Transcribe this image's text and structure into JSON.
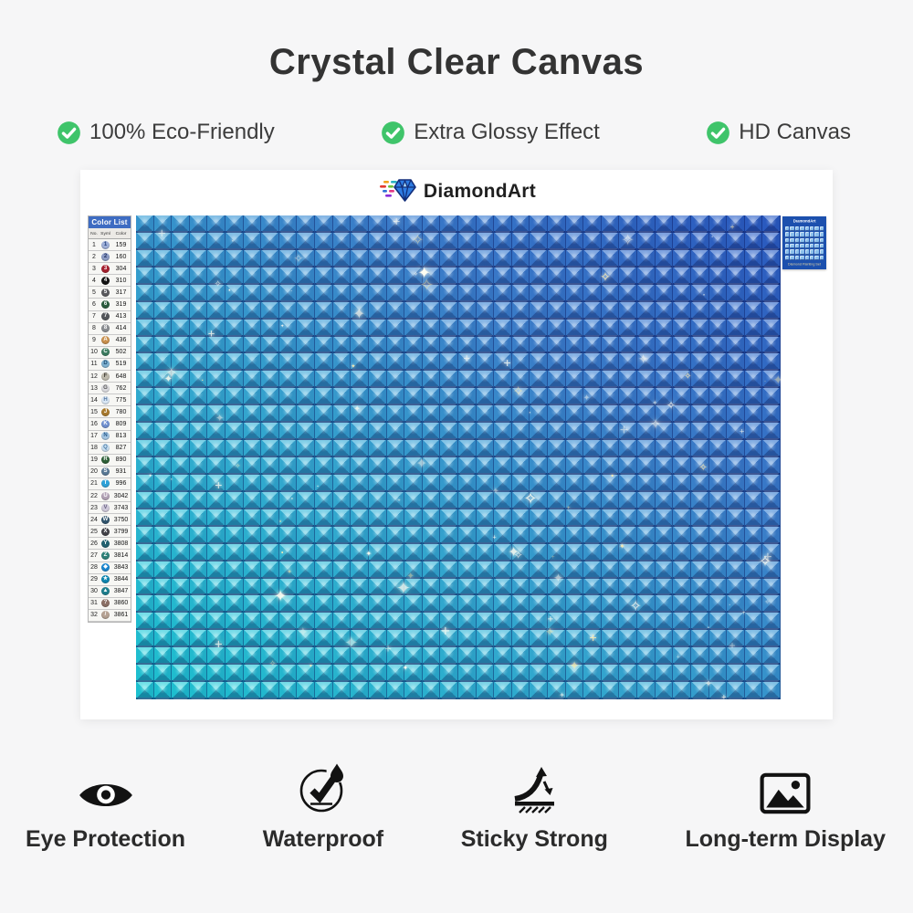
{
  "page": {
    "title": "Crystal Clear Canvas",
    "background": "#f6f6f7",
    "accent_green": "#3fc46a"
  },
  "features": [
    {
      "label": "100% Eco-Friendly"
    },
    {
      "label": "Extra Glossy Effect"
    },
    {
      "label": "HD Canvas"
    }
  ],
  "brand": {
    "name": "DiamondArt"
  },
  "color_list": {
    "title": "Color List",
    "columns": [
      "No.",
      "Symbol",
      "Color"
    ],
    "rows": [
      [
        1,
        "1",
        "159",
        "#9fb0d8",
        "#23407c"
      ],
      [
        2,
        "2",
        "160",
        "#8d9cc4",
        "#1e2e5e"
      ],
      [
        3,
        "3",
        "304",
        "#a6202e",
        "#ffffff"
      ],
      [
        4,
        "4",
        "310",
        "#141414",
        "#ffffff"
      ],
      [
        5,
        "5",
        "317",
        "#5a5a5e",
        "#ffffff"
      ],
      [
        6,
        "6",
        "319",
        "#2b5c3e",
        "#ffffff"
      ],
      [
        7,
        "7",
        "413",
        "#54575b",
        "#ffffff"
      ],
      [
        8,
        "8",
        "414",
        "#8b8e92",
        "#ffffff"
      ],
      [
        9,
        "A",
        "436",
        "#c9914e",
        "#ffffff"
      ],
      [
        10,
        "C",
        "502",
        "#3c7c60",
        "#ffffff"
      ],
      [
        11,
        "D",
        "519",
        "#7fb2d2",
        "#1c4a6e"
      ],
      [
        12,
        "F",
        "648",
        "#bdb9ac",
        "#3f3c34"
      ],
      [
        13,
        "G",
        "762",
        "#dadade",
        "#555555"
      ],
      [
        14,
        "H",
        "775",
        "#d9e7f5",
        "#5577a0"
      ],
      [
        15,
        "J",
        "780",
        "#a87a2e",
        "#ffffff"
      ],
      [
        16,
        "K",
        "809",
        "#7090d0",
        "#ffffff"
      ],
      [
        17,
        "N",
        "813",
        "#a3c5e2",
        "#2a5c8c"
      ],
      [
        18,
        "Q",
        "827",
        "#c9dff0",
        "#4a7ba6"
      ],
      [
        19,
        "R",
        "890",
        "#2d6038",
        "#ffffff"
      ],
      [
        20,
        "S",
        "931",
        "#5a7a96",
        "#ffffff"
      ],
      [
        21,
        "T",
        "996",
        "#2ea2d8",
        "#ffffff"
      ],
      [
        22,
        "U",
        "3042",
        "#b3a3b6",
        "#ffffff"
      ],
      [
        23,
        "V",
        "3743",
        "#cfc9da",
        "#666080"
      ],
      [
        24,
        "W",
        "3750",
        "#32566f",
        "#ffffff"
      ],
      [
        25,
        "X",
        "3799",
        "#434349",
        "#ffffff"
      ],
      [
        26,
        "Y",
        "3808",
        "#226270",
        "#ffffff"
      ],
      [
        27,
        "Z",
        "3814",
        "#2e8278",
        "#ffffff"
      ],
      [
        28,
        "◆",
        "3843",
        "#1a86cf",
        "#ffffff"
      ],
      [
        29,
        "★",
        "3844",
        "#0e86b0",
        "#ffffff"
      ],
      [
        30,
        "▲",
        "3847",
        "#1f7f8e",
        "#ffffff"
      ],
      [
        31,
        "?",
        "3860",
        "#8c7066",
        "#ffffff"
      ],
      [
        32,
        "/",
        "3861",
        "#b5a192",
        "#ffffff"
      ]
    ]
  },
  "canvas": {
    "grid_cols": 36,
    "grid_rows": 28,
    "gradient": [
      "#1ed3db",
      "#38b4da",
      "#3f86d4",
      "#2d5ec8"
    ],
    "line_color": "#0a1654"
  },
  "package": {
    "logo_text": "DiamondArt",
    "caption": "Diamond Painting Set"
  },
  "benefits": [
    {
      "icon": "eye",
      "label": "Eye Protection"
    },
    {
      "icon": "waterproof",
      "label": "Waterproof"
    },
    {
      "icon": "sticky",
      "label": "Sticky Strong"
    },
    {
      "icon": "display",
      "label": "Long-term Display"
    }
  ]
}
